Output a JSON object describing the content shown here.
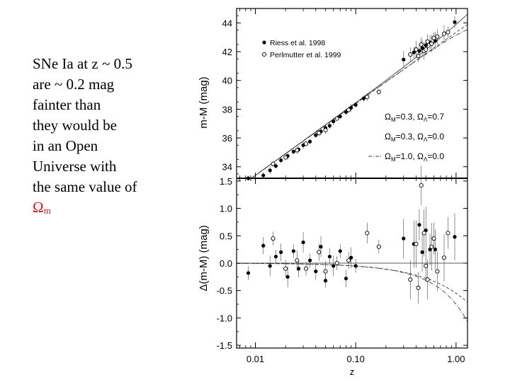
{
  "caption": {
    "lines": [
      "SNe Ia at z ~ 0.5",
      "are ~ 0.2 mag",
      "fainter than",
      "they would be",
      "in an Open",
      "Universe with",
      "the same value of"
    ],
    "omega_symbol": "Ω",
    "omega_subscript": "m"
  },
  "chart_data": [
    {
      "type": "scatter",
      "panel": "top",
      "xlabel": "z",
      "ylabel": "m-M (mag)",
      "xscale": "log",
      "xlim": [
        0.0065,
        1.3
      ],
      "ylim": [
        33.2,
        45.0
      ],
      "yticks": [
        34,
        36,
        38,
        40,
        42,
        44
      ],
      "legend": [
        {
          "label": "Riess et al. 1998",
          "marker": "filled-circle"
        },
        {
          "label": "Perlmutter et al. 1999",
          "marker": "open-circle"
        }
      ],
      "models": [
        {
          "omega_m": "0.3",
          "omega_l": "0.7",
          "style": "solid",
          "label_m": "=0.3, ",
          "label_l": "=0.7"
        },
        {
          "omega_m": "0.3",
          "omega_l": "0.0",
          "style": "dashed",
          "label_m": "=0.3, ",
          "label_l": "=0.0"
        },
        {
          "omega_m": "1.0",
          "omega_l": "0.0",
          "style": "dash-dot",
          "label_m": "=1.0, ",
          "label_l": "=0.0"
        }
      ],
      "series": [
        {
          "name": "Riess et al. 1998",
          "points": [
            [
              0.0085,
              33.2
            ],
            [
              0.012,
              33.4
            ],
            [
              0.014,
              33.75
            ],
            [
              0.016,
              34.05
            ],
            [
              0.018,
              34.45
            ],
            [
              0.021,
              34.75
            ],
            [
              0.024,
              35.05
            ],
            [
              0.027,
              35.2
            ],
            [
              0.03,
              35.5
            ],
            [
              0.035,
              35.75
            ],
            [
              0.04,
              36.2
            ],
            [
              0.045,
              36.45
            ],
            [
              0.05,
              36.7
            ],
            [
              0.055,
              36.85
            ],
            [
              0.06,
              37.15
            ],
            [
              0.07,
              37.5
            ],
            [
              0.08,
              37.8
            ],
            [
              0.09,
              38.1
            ],
            [
              0.1,
              38.3
            ],
            [
              0.12,
              38.75
            ],
            [
              0.3,
              41.45
            ],
            [
              0.38,
              41.95
            ],
            [
              0.43,
              42.05
            ],
            [
              0.46,
              42.25
            ],
            [
              0.5,
              42.45
            ],
            [
              0.55,
              42.65
            ],
            [
              0.62,
              42.75
            ],
            [
              0.97,
              44.05
            ]
          ]
        },
        {
          "name": "Perlmutter et al. 1999",
          "points": [
            [
              0.015,
              34.2
            ],
            [
              0.02,
              34.65
            ],
            [
              0.026,
              35.15
            ],
            [
              0.032,
              35.6
            ],
            [
              0.043,
              36.35
            ],
            [
              0.05,
              36.55
            ],
            [
              0.065,
              37.35
            ],
            [
              0.085,
              37.95
            ],
            [
              0.13,
              38.85
            ],
            [
              0.17,
              39.2
            ],
            [
              0.35,
              41.8
            ],
            [
              0.4,
              42.15
            ],
            [
              0.42,
              41.7
            ],
            [
              0.45,
              42.5
            ],
            [
              0.48,
              42.05
            ],
            [
              0.5,
              42.15
            ],
            [
              0.52,
              42.7
            ],
            [
              0.57,
              42.55
            ],
            [
              0.6,
              42.95
            ],
            [
              0.65,
              43.05
            ],
            [
              0.76,
              43.25
            ],
            [
              0.83,
              43.35
            ]
          ]
        }
      ]
    },
    {
      "type": "scatter",
      "panel": "bottom",
      "xlabel": "z",
      "ylabel": "Δ(m-M) (mag)",
      "xscale": "log",
      "xlim": [
        0.0065,
        1.3
      ],
      "ylim": [
        -1.55,
        1.55
      ],
      "yticks": [
        -1.5,
        -1.0,
        -0.5,
        0.0,
        0.5,
        1.0,
        1.5
      ],
      "ytick_labels": [
        "-1.5",
        "-1.0",
        "-0.5",
        "0.0",
        "0.5",
        "1.0",
        "1.5"
      ],
      "xticks": [
        0.01,
        0.1,
        1.0
      ],
      "xtick_labels": [
        "0.01",
        "0.10",
        "1.00"
      ],
      "series": [
        {
          "name": "Riess et al. 1998",
          "points": [
            [
              0.0085,
              -0.18
            ],
            [
              0.012,
              0.32
            ],
            [
              0.014,
              -0.05
            ],
            [
              0.016,
              0.12
            ],
            [
              0.018,
              0.2
            ],
            [
              0.021,
              -0.25
            ],
            [
              0.024,
              0.22
            ],
            [
              0.027,
              -0.1
            ],
            [
              0.03,
              0.38
            ],
            [
              0.035,
              0.05
            ],
            [
              0.04,
              -0.15
            ],
            [
              0.045,
              0.3
            ],
            [
              0.05,
              -0.32
            ],
            [
              0.055,
              0.12
            ],
            [
              0.06,
              -0.05
            ],
            [
              0.07,
              0.22
            ],
            [
              0.08,
              -0.28
            ],
            [
              0.09,
              0.1
            ],
            [
              0.1,
              -0.05
            ],
            [
              0.3,
              0.45
            ],
            [
              0.38,
              0.35
            ],
            [
              0.43,
              0.7
            ],
            [
              0.46,
              0.2
            ],
            [
              0.5,
              0.6
            ],
            [
              0.55,
              0.25
            ],
            [
              0.62,
              0.25
            ],
            [
              0.97,
              0.48
            ]
          ]
        },
        {
          "name": "Perlmutter et al. 1999",
          "points": [
            [
              0.015,
              0.45
            ],
            [
              0.02,
              -0.1
            ],
            [
              0.026,
              0.05
            ],
            [
              0.032,
              -0.1
            ],
            [
              0.043,
              0.2
            ],
            [
              0.05,
              -0.15
            ],
            [
              0.065,
              0.0
            ],
            [
              0.085,
              0.05
            ],
            [
              0.13,
              0.55
            ],
            [
              0.17,
              0.3
            ],
            [
              0.35,
              -0.3
            ],
            [
              0.4,
              0.35
            ],
            [
              0.42,
              -0.45
            ],
            [
              0.45,
              1.42
            ],
            [
              0.48,
              0.55
            ],
            [
              0.5,
              -0.05
            ],
            [
              0.52,
              -0.3
            ],
            [
              0.57,
              0.3
            ],
            [
              0.6,
              0.45
            ],
            [
              0.65,
              -0.15
            ],
            [
              0.76,
              0.1
            ],
            [
              0.83,
              0.55
            ]
          ]
        }
      ]
    }
  ]
}
